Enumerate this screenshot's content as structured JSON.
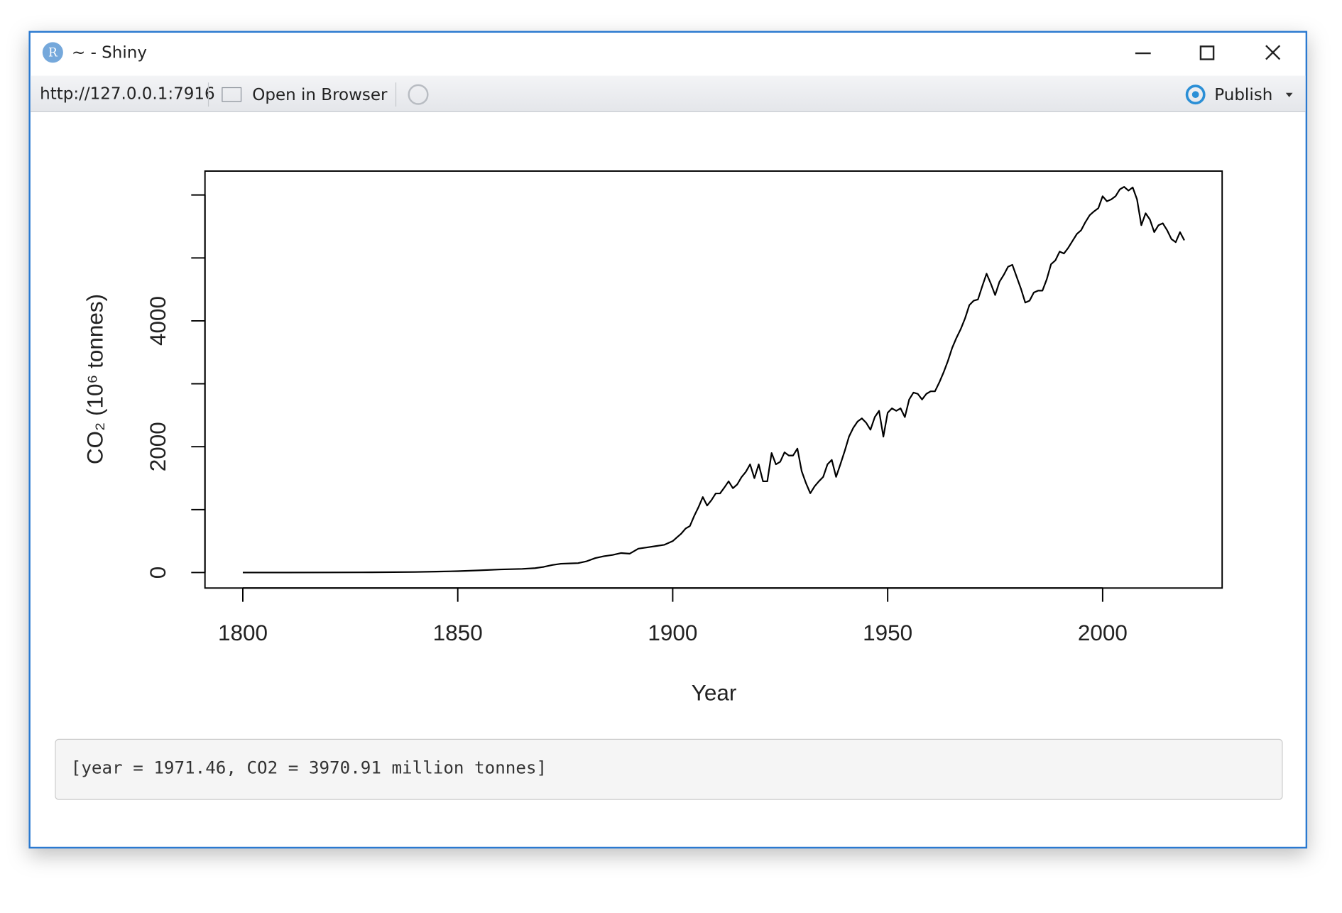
{
  "window": {
    "title": "~ - Shiny",
    "url": "http://127.0.0.1:7916",
    "open_in_browser": "Open in Browser",
    "publish": "Publish"
  },
  "chart_data": {
    "type": "line",
    "ylabel": "CO₂ (10⁶ tonnes)",
    "xlabel": "Year",
    "color": "#000000",
    "x": [
      1800,
      1810,
      1820,
      1830,
      1840,
      1845,
      1850,
      1855,
      1860,
      1865,
      1868,
      1870,
      1872,
      1874,
      1876,
      1878,
      1880,
      1882,
      1884,
      1886,
      1888,
      1890,
      1892,
      1894,
      1896,
      1898,
      1900,
      1901,
      1902,
      1903,
      1904,
      1905,
      1906,
      1907,
      1908,
      1909,
      1910,
      1911,
      1912,
      1913,
      1914,
      1915,
      1916,
      1917,
      1918,
      1919,
      1920,
      1921,
      1922,
      1923,
      1924,
      1925,
      1926,
      1927,
      1928,
      1929,
      1930,
      1931,
      1932,
      1933,
      1934,
      1935,
      1936,
      1937,
      1938,
      1939,
      1940,
      1941,
      1942,
      1943,
      1944,
      1945,
      1946,
      1947,
      1948,
      1949,
      1950,
      1951,
      1952,
      1953,
      1954,
      1955,
      1956,
      1957,
      1958,
      1959,
      1960,
      1961,
      1962,
      1963,
      1964,
      1965,
      1966,
      1967,
      1968,
      1969,
      1970,
      1971,
      1972,
      1973,
      1974,
      1975,
      1976,
      1977,
      1978,
      1979,
      1980,
      1981,
      1982,
      1983,
      1984,
      1985,
      1986,
      1987,
      1988,
      1989,
      1990,
      1991,
      1992,
      1993,
      1994,
      1995,
      1996,
      1997,
      1998,
      1999,
      2000,
      2001,
      2002,
      2003,
      2004,
      2005,
      2006,
      2007,
      2008,
      2009,
      2010,
      2011,
      2012,
      2013,
      2014,
      2015,
      2016,
      2017,
      2018,
      2019
    ],
    "values": [
      0,
      0,
      2,
      4,
      9,
      15,
      22,
      35,
      50,
      58,
      70,
      90,
      120,
      140,
      145,
      150,
      180,
      230,
      260,
      280,
      310,
      300,
      380,
      400,
      420,
      440,
      500,
      560,
      620,
      700,
      740,
      900,
      1040,
      1200,
      1065,
      1150,
      1257,
      1257,
      1350,
      1450,
      1340,
      1400,
      1516,
      1600,
      1720,
      1500,
      1720,
      1450,
      1450,
      1900,
      1720,
      1760,
      1910,
      1860,
      1860,
      1970,
      1610,
      1420,
      1260,
      1370,
      1450,
      1520,
      1720,
      1790,
      1520,
      1720,
      1930,
      2160,
      2300,
      2400,
      2450,
      2380,
      2270,
      2470,
      2570,
      2160,
      2540,
      2610,
      2570,
      2610,
      2470,
      2750,
      2860,
      2840,
      2750,
      2840,
      2880,
      2880,
      3020,
      3180,
      3360,
      3570,
      3730,
      3870,
      4040,
      4250,
      4320,
      4340,
      4550,
      4750,
      4590,
      4410,
      4620,
      4730,
      4860,
      4890,
      4700,
      4510,
      4290,
      4320,
      4450,
      4480,
      4480,
      4660,
      4900,
      4960,
      5100,
      5070,
      5160,
      5270,
      5380,
      5440,
      5570,
      5680,
      5740,
      5790,
      5980,
      5900,
      5930,
      5980,
      6090,
      6130,
      6070,
      6120,
      5930,
      5520,
      5710,
      5610,
      5410,
      5520,
      5550,
      5440,
      5300,
      5250,
      5410,
      5280
    ],
    "xlim": [
      1791.2,
      2027.8
    ],
    "ylim": [
      -246,
      6380
    ],
    "xticks": [
      1800,
      1850,
      1900,
      1950,
      2000
    ],
    "yticks": [
      0,
      1000,
      2000,
      3000,
      4000,
      5000,
      6000
    ]
  },
  "output": "[year = 1971.46, CO2 = 3970.91 million tonnes]"
}
